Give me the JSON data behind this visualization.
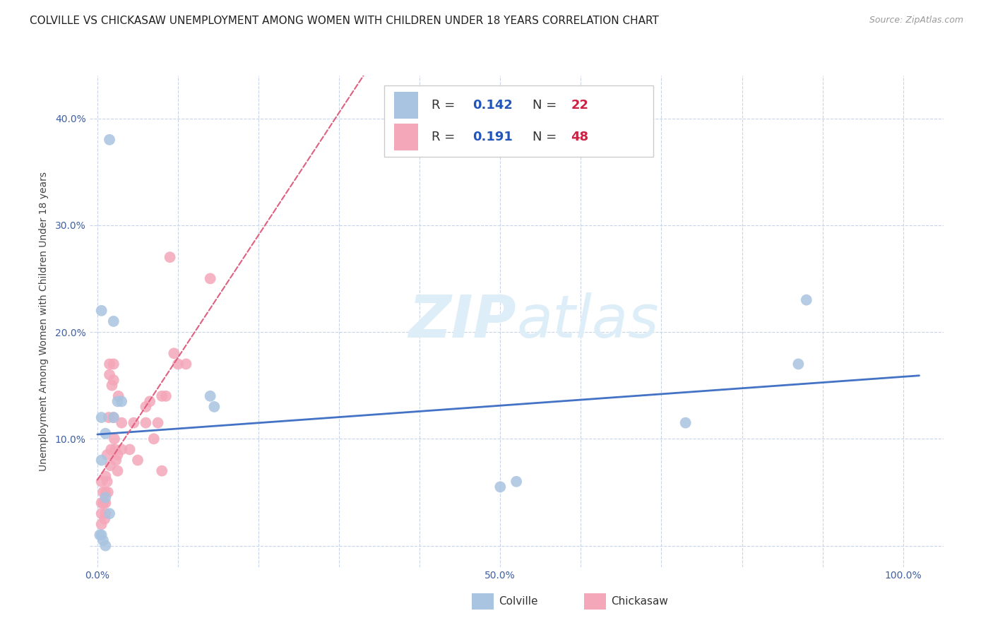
{
  "title": "COLVILLE VS CHICKASAW UNEMPLOYMENT AMONG WOMEN WITH CHILDREN UNDER 18 YEARS CORRELATION CHART",
  "source": "Source: ZipAtlas.com",
  "ylabel": "Unemployment Among Women with Children Under 18 years",
  "colville_R": 0.142,
  "colville_N": 22,
  "chickasaw_R": 0.191,
  "chickasaw_N": 48,
  "colville_color": "#a8c4e0",
  "chickasaw_color": "#f4a7b9",
  "colville_line_color": "#4472c4",
  "chickasaw_line_color": "#e06080",
  "watermark_zip": "ZIP",
  "watermark_atlas": "atlas",
  "watermark_color": "#ddeef8",
  "colville_x": [
    0.01,
    0.02,
    0.005,
    0.015,
    0.005,
    0.02,
    0.025,
    0.03,
    0.005,
    0.01,
    0.015,
    0.005,
    0.003,
    0.007,
    0.01,
    0.14,
    0.145,
    0.5,
    0.52,
    0.73,
    0.87,
    0.88
  ],
  "colville_y": [
    0.105,
    0.21,
    0.22,
    0.38,
    0.12,
    0.12,
    0.135,
    0.135,
    0.08,
    0.045,
    0.03,
    0.01,
    0.01,
    0.005,
    0.0,
    0.14,
    0.13,
    0.055,
    0.06,
    0.115,
    0.17,
    0.23
  ],
  "chickasaw_x": [
    0.005,
    0.005,
    0.005,
    0.005,
    0.007,
    0.007,
    0.008,
    0.009,
    0.01,
    0.01,
    0.01,
    0.01,
    0.012,
    0.012,
    0.013,
    0.014,
    0.015,
    0.015,
    0.016,
    0.017,
    0.018,
    0.02,
    0.02,
    0.02,
    0.021,
    0.022,
    0.023,
    0.025,
    0.025,
    0.026,
    0.03,
    0.03,
    0.04,
    0.045,
    0.05,
    0.06,
    0.06,
    0.065,
    0.07,
    0.075,
    0.08,
    0.08,
    0.085,
    0.09,
    0.095,
    0.1,
    0.11,
    0.14
  ],
  "chickasaw_y": [
    0.06,
    0.04,
    0.03,
    0.02,
    0.05,
    0.04,
    0.04,
    0.025,
    0.065,
    0.05,
    0.04,
    0.03,
    0.085,
    0.06,
    0.05,
    0.12,
    0.17,
    0.16,
    0.075,
    0.09,
    0.15,
    0.17,
    0.155,
    0.12,
    0.1,
    0.09,
    0.08,
    0.085,
    0.07,
    0.14,
    0.115,
    0.09,
    0.09,
    0.115,
    0.08,
    0.115,
    0.13,
    0.135,
    0.1,
    0.115,
    0.14,
    0.07,
    0.14,
    0.27,
    0.18,
    0.17,
    0.17,
    0.25
  ],
  "xlim": [
    -0.01,
    1.05
  ],
  "ylim": [
    -0.02,
    0.44
  ],
  "xlabel_ticks": [
    0.0,
    0.1,
    0.2,
    0.3,
    0.4,
    0.5,
    0.6,
    0.7,
    0.8,
    0.9,
    1.0
  ],
  "xlabel_labels": [
    "0.0%",
    "",
    "",
    "",
    "",
    "50.0%",
    "",
    "",
    "",
    "",
    "100.0%"
  ],
  "ylabel_ticks": [
    0.0,
    0.1,
    0.2,
    0.3,
    0.4
  ],
  "ylabel_labels": [
    "",
    "10.0%",
    "20.0%",
    "30.0%",
    "40.0%"
  ],
  "grid_color": "#c8d4e8",
  "background_color": "#ffffff",
  "title_fontsize": 11,
  "ylabel_fontsize": 10,
  "tick_fontsize": 10,
  "tick_color": "#4060a0",
  "legend_text_color": "#333333",
  "legend_value_color": "#2255bb",
  "legend_n_color": "#cc2244",
  "source_color": "#999999"
}
